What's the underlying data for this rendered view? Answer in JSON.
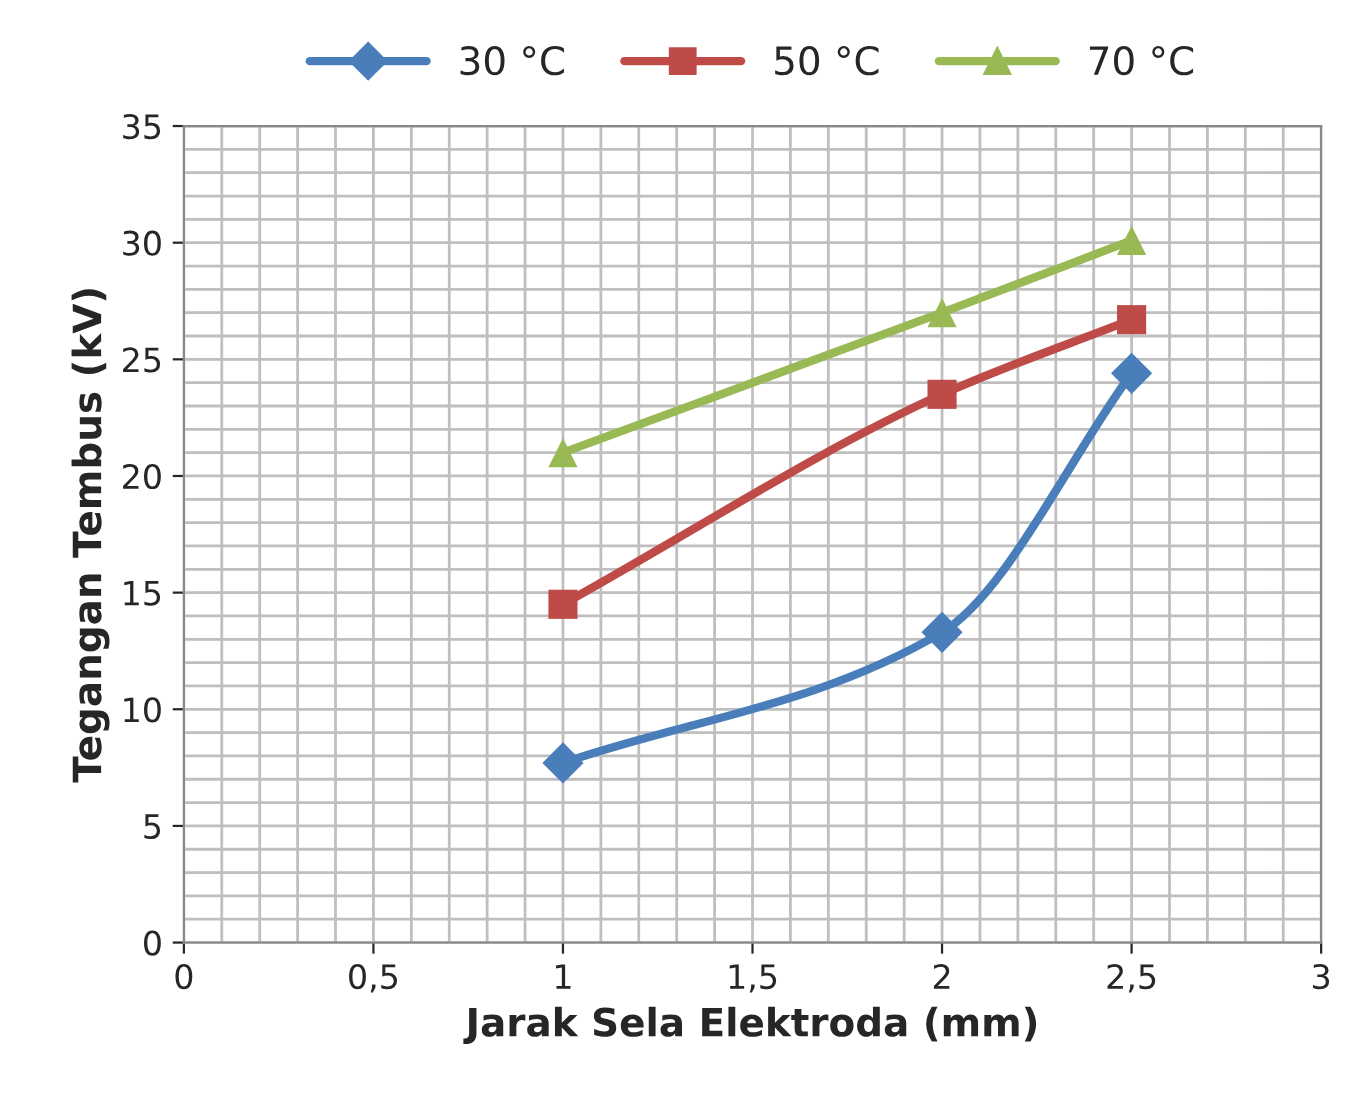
{
  "chart_data": {
    "type": "line",
    "xlabel": "Jarak Sela Elektroda (mm)",
    "ylabel": "Tegangan Tembus (kV)",
    "x": [
      1,
      2,
      2.5
    ],
    "series": [
      {
        "name": "30 °C",
        "color": "#4a7ebb",
        "marker": "diamond",
        "values": [
          7.7,
          13.3,
          24.4
        ]
      },
      {
        "name": "50 °C",
        "color": "#be4b48",
        "marker": "square",
        "values": [
          14.5,
          23.5,
          26.7
        ]
      },
      {
        "name": "70 °C",
        "color": "#98b954",
        "marker": "triangle",
        "values": [
          21.0,
          27.0,
          30.1
        ]
      }
    ],
    "xlim": [
      0,
      3
    ],
    "xticks": [
      0,
      {
        "value": 0.5,
        "label": "0,5"
      },
      1,
      {
        "value": 1.5,
        "label": "1,5"
      },
      2,
      {
        "value": 2.5,
        "label": "2,5"
      },
      3
    ],
    "ylim": [
      0,
      35
    ],
    "yticks": [
      0,
      5,
      10,
      15,
      20,
      25,
      30,
      35
    ],
    "grid": true,
    "legend": "top",
    "line_style": "solid"
  }
}
